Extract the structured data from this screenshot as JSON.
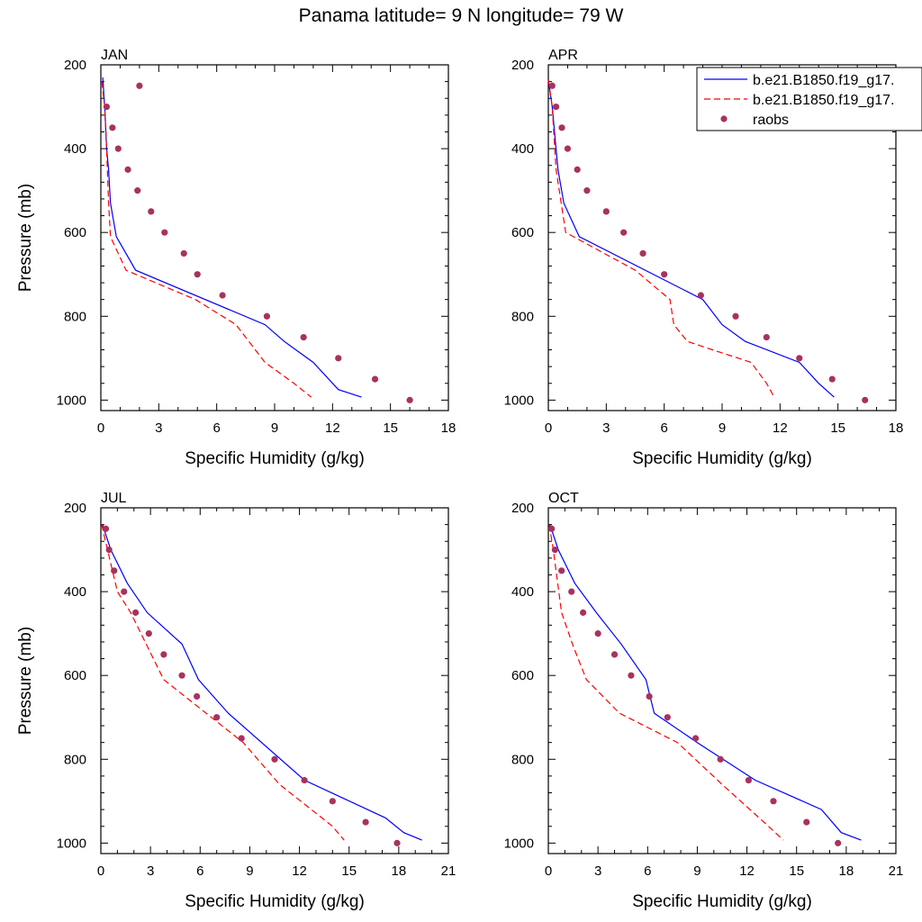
{
  "figure": {
    "title": "Panama  latitude= 9 N longitude= 79 W"
  },
  "legend": {
    "placement": "top-right",
    "entries": [
      {
        "label": "b.e21.B1850.f19_g17.",
        "style": "solid",
        "color": "#0000ff"
      },
      {
        "label": "b.e21.B1850.f19_g17.",
        "style": "dashed",
        "color": "#ff0000"
      },
      {
        "label": "raobs",
        "style": "marker",
        "color": "#a8325e"
      }
    ]
  },
  "chart_data": [
    {
      "type": "line",
      "panel_label": "JAN",
      "xlabel": "Specific Humidity (g/kg)",
      "ylabel": "Pressure (mb)",
      "xlim": [
        0,
        18
      ],
      "ylim": [
        200,
        1025
      ],
      "y_inverted": true,
      "x_ticks": [
        "0",
        "3",
        "6",
        "9",
        "12",
        "15",
        "18"
      ],
      "y_ticks": [
        "200",
        "400",
        "600",
        "800",
        "1000"
      ],
      "series": [
        {
          "name": "b.e21.B1850.f19_g17.",
          "style": "solid",
          "color": "#0000ff",
          "x": [
            0.1,
            0.2,
            0.3,
            0.4,
            0.5,
            0.8,
            1.8,
            8.5,
            9.5,
            11,
            12.3,
            13.5
          ],
          "y": [
            230,
            300,
            400,
            450,
            530,
            610,
            690,
            820,
            860,
            910,
            975,
            993
          ]
        },
        {
          "name": "b.e21.B1850.f19_g17.",
          "style": "dashed",
          "color": "#ff0000",
          "x": [
            0.05,
            0.2,
            0.3,
            0.4,
            0.5,
            1.3,
            4.9,
            7.0,
            8.5,
            10.0,
            10.9
          ],
          "y": [
            240,
            300,
            400,
            530,
            610,
            690,
            760,
            820,
            910,
            960,
            993
          ]
        },
        {
          "name": "raobs",
          "style": "marker",
          "color": "#a8325e",
          "x": [
            2.0,
            0.3,
            0.6,
            0.9,
            1.4,
            1.9,
            2.6,
            3.3,
            4.3,
            5.0,
            6.3,
            8.6,
            10.5,
            12.3,
            14.2,
            16.0
          ],
          "y": [
            250,
            300,
            350,
            400,
            450,
            500,
            550,
            600,
            650,
            700,
            750,
            800,
            850,
            900,
            950,
            1000
          ]
        }
      ]
    },
    {
      "type": "line",
      "panel_label": "APR",
      "xlabel": "Specific Humidity (g/kg)",
      "ylabel": "",
      "xlim": [
        0,
        18
      ],
      "ylim": [
        200,
        1025
      ],
      "y_inverted": true,
      "x_ticks": [
        "0",
        "3",
        "6",
        "9",
        "12",
        "15",
        "18"
      ],
      "y_ticks": [
        "200",
        "400",
        "600",
        "800",
        "1000"
      ],
      "series": [
        {
          "name": "b.e21.B1850.f19_g17.",
          "style": "solid",
          "color": "#0000ff",
          "x": [
            0.0,
            0.2,
            0.5,
            0.8,
            1.6,
            8.0,
            9.0,
            10.2,
            13.0,
            14.0,
            14.8
          ],
          "y": [
            235,
            300,
            450,
            530,
            610,
            760,
            820,
            860,
            910,
            960,
            993
          ]
        },
        {
          "name": "b.e21.B1850.f19_g17.",
          "style": "dashed",
          "color": "#ff0000",
          "x": [
            0.0,
            0.2,
            0.4,
            0.9,
            4.5,
            6.3,
            6.5,
            7.2,
            8.5,
            10.5,
            11.3,
            11.7
          ],
          "y": [
            235,
            300,
            450,
            600,
            690,
            760,
            820,
            860,
            880,
            910,
            960,
            993
          ]
        },
        {
          "name": "raobs",
          "style": "marker",
          "color": "#a8325e",
          "x": [
            0.2,
            0.4,
            0.7,
            1.0,
            1.5,
            2.0,
            3.0,
            3.9,
            4.9,
            6.0,
            7.9,
            9.7,
            11.3,
            13.0,
            14.7,
            16.4
          ],
          "y": [
            250,
            300,
            350,
            400,
            450,
            500,
            550,
            600,
            650,
            700,
            750,
            800,
            850,
            900,
            950,
            1000
          ]
        }
      ]
    },
    {
      "type": "line",
      "panel_label": "JUL",
      "xlabel": "Specific Humidity (g/kg)",
      "ylabel": "Pressure (mb)",
      "xlim": [
        0,
        21
      ],
      "ylim": [
        200,
        1025
      ],
      "y_inverted": true,
      "x_ticks": [
        "0",
        "3",
        "6",
        "9",
        "12",
        "15",
        "18",
        "21"
      ],
      "y_ticks": [
        "200",
        "400",
        "600",
        "800",
        "1000"
      ],
      "series": [
        {
          "name": "b.e21.B1850.f19_g17.",
          "style": "solid",
          "color": "#0000ff",
          "x": [
            0.1,
            0.6,
            1.6,
            2.8,
            4.9,
            5.9,
            7.7,
            12.3,
            17.2,
            18.3,
            19.4
          ],
          "y": [
            240,
            300,
            380,
            450,
            525,
            610,
            690,
            850,
            940,
            975,
            993
          ]
        },
        {
          "name": "b.e21.B1850.f19_g17.",
          "style": "dashed",
          "color": "#ff0000",
          "x": [
            0.05,
            0.4,
            1.0,
            1.8,
            2.8,
            3.8,
            8.6,
            10.8,
            14.0,
            14.7
          ],
          "y": [
            240,
            300,
            400,
            450,
            530,
            610,
            760,
            860,
            960,
            993
          ]
        },
        {
          "name": "raobs",
          "style": "marker",
          "color": "#a8325e",
          "x": [
            0.3,
            0.5,
            0.8,
            1.4,
            2.1,
            2.9,
            3.8,
            4.9,
            5.8,
            7.0,
            8.5,
            10.5,
            12.3,
            14.0,
            16.0,
            17.9
          ],
          "y": [
            250,
            300,
            350,
            400,
            450,
            500,
            550,
            600,
            650,
            700,
            750,
            800,
            850,
            900,
            950,
            1000
          ]
        }
      ]
    },
    {
      "type": "line",
      "panel_label": "OCT",
      "xlabel": "Specific Humidity (g/kg)",
      "ylabel": "",
      "xlim": [
        0,
        21
      ],
      "ylim": [
        200,
        1025
      ],
      "y_inverted": true,
      "x_ticks": [
        "0",
        "3",
        "6",
        "9",
        "12",
        "15",
        "18",
        "21"
      ],
      "y_ticks": [
        "200",
        "400",
        "600",
        "800",
        "1000"
      ],
      "series": [
        {
          "name": "b.e21.B1850.f19_g17.",
          "style": "solid",
          "color": "#0000ff",
          "x": [
            0.1,
            0.6,
            1.6,
            2.9,
            4.4,
            5.9,
            6.4,
            9.0,
            12.5,
            16.5,
            17.7,
            18.9
          ],
          "y": [
            240,
            300,
            380,
            450,
            525,
            610,
            690,
            760,
            850,
            920,
            975,
            993
          ]
        },
        {
          "name": "b.e21.B1850.f19_g17.",
          "style": "dashed",
          "color": "#ff0000",
          "x": [
            0.05,
            0.3,
            0.8,
            1.5,
            2.3,
            4.3,
            7.8,
            10.5,
            13.3,
            14.2
          ],
          "y": [
            240,
            300,
            450,
            530,
            610,
            690,
            760,
            860,
            960,
            993
          ]
        },
        {
          "name": "raobs",
          "style": "marker",
          "color": "#a8325e",
          "x": [
            0.2,
            0.4,
            0.8,
            1.4,
            2.1,
            3.0,
            4.0,
            5.0,
            6.1,
            7.2,
            8.9,
            10.4,
            12.1,
            13.6,
            15.6,
            17.5
          ],
          "y": [
            250,
            300,
            350,
            400,
            450,
            500,
            550,
            600,
            650,
            700,
            750,
            800,
            850,
            900,
            950,
            1000
          ]
        }
      ]
    }
  ]
}
